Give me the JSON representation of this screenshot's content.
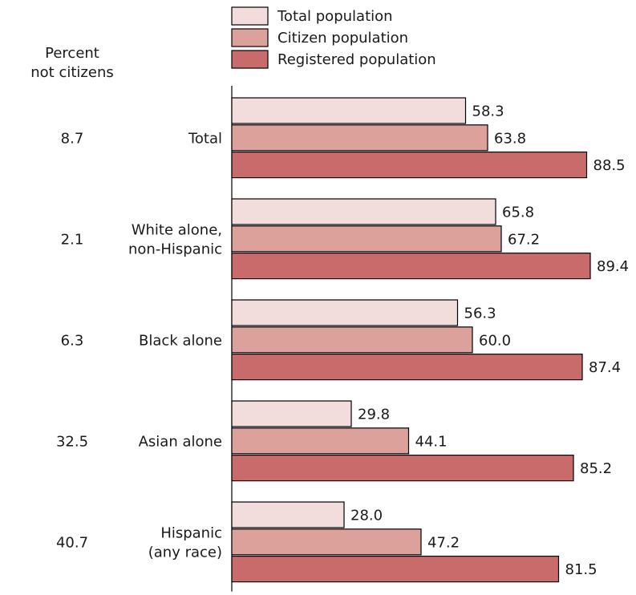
{
  "chart_data": {
    "type": "bar",
    "orientation": "horizontal",
    "categories": [
      "Total",
      "White alone, non-Hispanic",
      "Black alone",
      "Asian alone",
      "Hispanic (any race)"
    ],
    "category_lines": [
      [
        "Total"
      ],
      [
        "White alone,",
        "non-Hispanic"
      ],
      [
        "Black alone"
      ],
      [
        "Asian alone"
      ],
      [
        "Hispanic",
        "(any race)"
      ]
    ],
    "series": [
      {
        "name": "Total population",
        "values": [
          58.3,
          65.8,
          56.3,
          29.8,
          28.0
        ],
        "color": "#f2dcdc"
      },
      {
        "name": "Citizen population",
        "values": [
          63.8,
          67.2,
          60.0,
          44.1,
          47.2
        ],
        "color": "#dda19c"
      },
      {
        "name": "Registered population",
        "values": [
          88.5,
          89.4,
          87.4,
          85.2,
          81.5
        ],
        "color": "#c96b6b"
      }
    ],
    "side_column": {
      "header": [
        "Percent",
        "not citizens"
      ],
      "values": [
        "8.7",
        "2.1",
        "6.3",
        "32.5",
        "40.7"
      ]
    },
    "legend_position": "top",
    "xlim": [
      0,
      100
    ],
    "value_label_format": "0.0"
  }
}
